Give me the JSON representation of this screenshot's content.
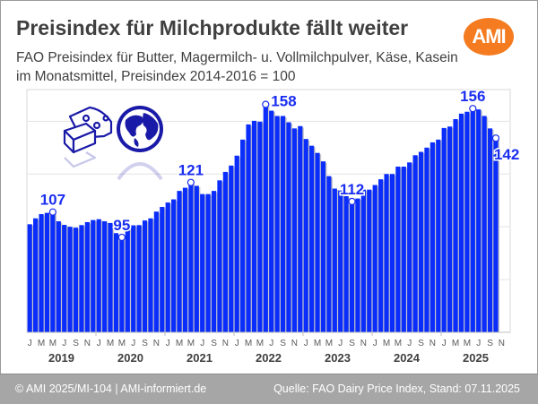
{
  "header": {
    "title": "Preisindex für Milchprodukte fällt weiter",
    "subtitle_line1": "FAO Preisindex für Butter, Magermilch- u. Vollmilchpulver, Käse, Kasein",
    "subtitle_line2": "im Monatsmittel, Preisindex 2014-2016 = 100",
    "logo_text": "AMI",
    "logo_color": "#f47b20"
  },
  "icons": [
    "cheese-butter-icon",
    "globe-icon"
  ],
  "footer": {
    "left": "© AMI 2025/MI-104 | AMI-informiert.de",
    "right": "Quelle: FAO Dairy Price Index, Stand: 07.11.2025"
  },
  "chart_data": {
    "type": "bar",
    "title": "Preisindex für Milchprodukte fällt weiter",
    "xlabel": "",
    "ylabel": "",
    "ylim": [
      50,
      165
    ],
    "grid_values": [
      75,
      100,
      125,
      150
    ],
    "grid": true,
    "bar_color": "#0a2dfb",
    "month_tick_labels": [
      "J",
      "M",
      "M",
      "J",
      "S",
      "N"
    ],
    "years": [
      "2019",
      "2020",
      "2021",
      "2022",
      "2023",
      "2024",
      "2025"
    ],
    "start": "2019-01",
    "end": "2025-10",
    "values": [
      101.2,
      104,
      106,
      106.6,
      107,
      102.6,
      100.9,
      100,
      99.6,
      100.8,
      102.2,
      103.2,
      103.6,
      102.6,
      101.8,
      97,
      95,
      100.3,
      100.7,
      100.8,
      103,
      104,
      107.2,
      109.4,
      111.5,
      113,
      117,
      118.5,
      121,
      119.4,
      115.5,
      115.5,
      117,
      122,
      126,
      129,
      133.7,
      141.3,
      148.5,
      150.2,
      149.8,
      158,
      155,
      152.5,
      152.5,
      149.5,
      146.6,
      147.7,
      141.6,
      138.4,
      135,
      131,
      124,
      118.1,
      117.2,
      114.5,
      112,
      113.4,
      117.6,
      117.6,
      119.8,
      122.5,
      125,
      125,
      128.5,
      128.5,
      130.5,
      133.9,
      135.5,
      137.5,
      140,
      141.3,
      146.8,
      147.5,
      151,
      153.6,
      154.5,
      156,
      155.6,
      152.5,
      146.6,
      142
    ],
    "annotations": [
      {
        "index": 4,
        "label": "107",
        "position": "above"
      },
      {
        "index": 16,
        "label": "95",
        "position": "above"
      },
      {
        "index": 28,
        "label": "121",
        "position": "above"
      },
      {
        "index": 41,
        "label": "158",
        "position": "right"
      },
      {
        "index": 56,
        "label": "112",
        "position": "above"
      },
      {
        "index": 77,
        "label": "156",
        "position": "above"
      },
      {
        "index": 81,
        "label": "142",
        "position": "below"
      }
    ]
  }
}
